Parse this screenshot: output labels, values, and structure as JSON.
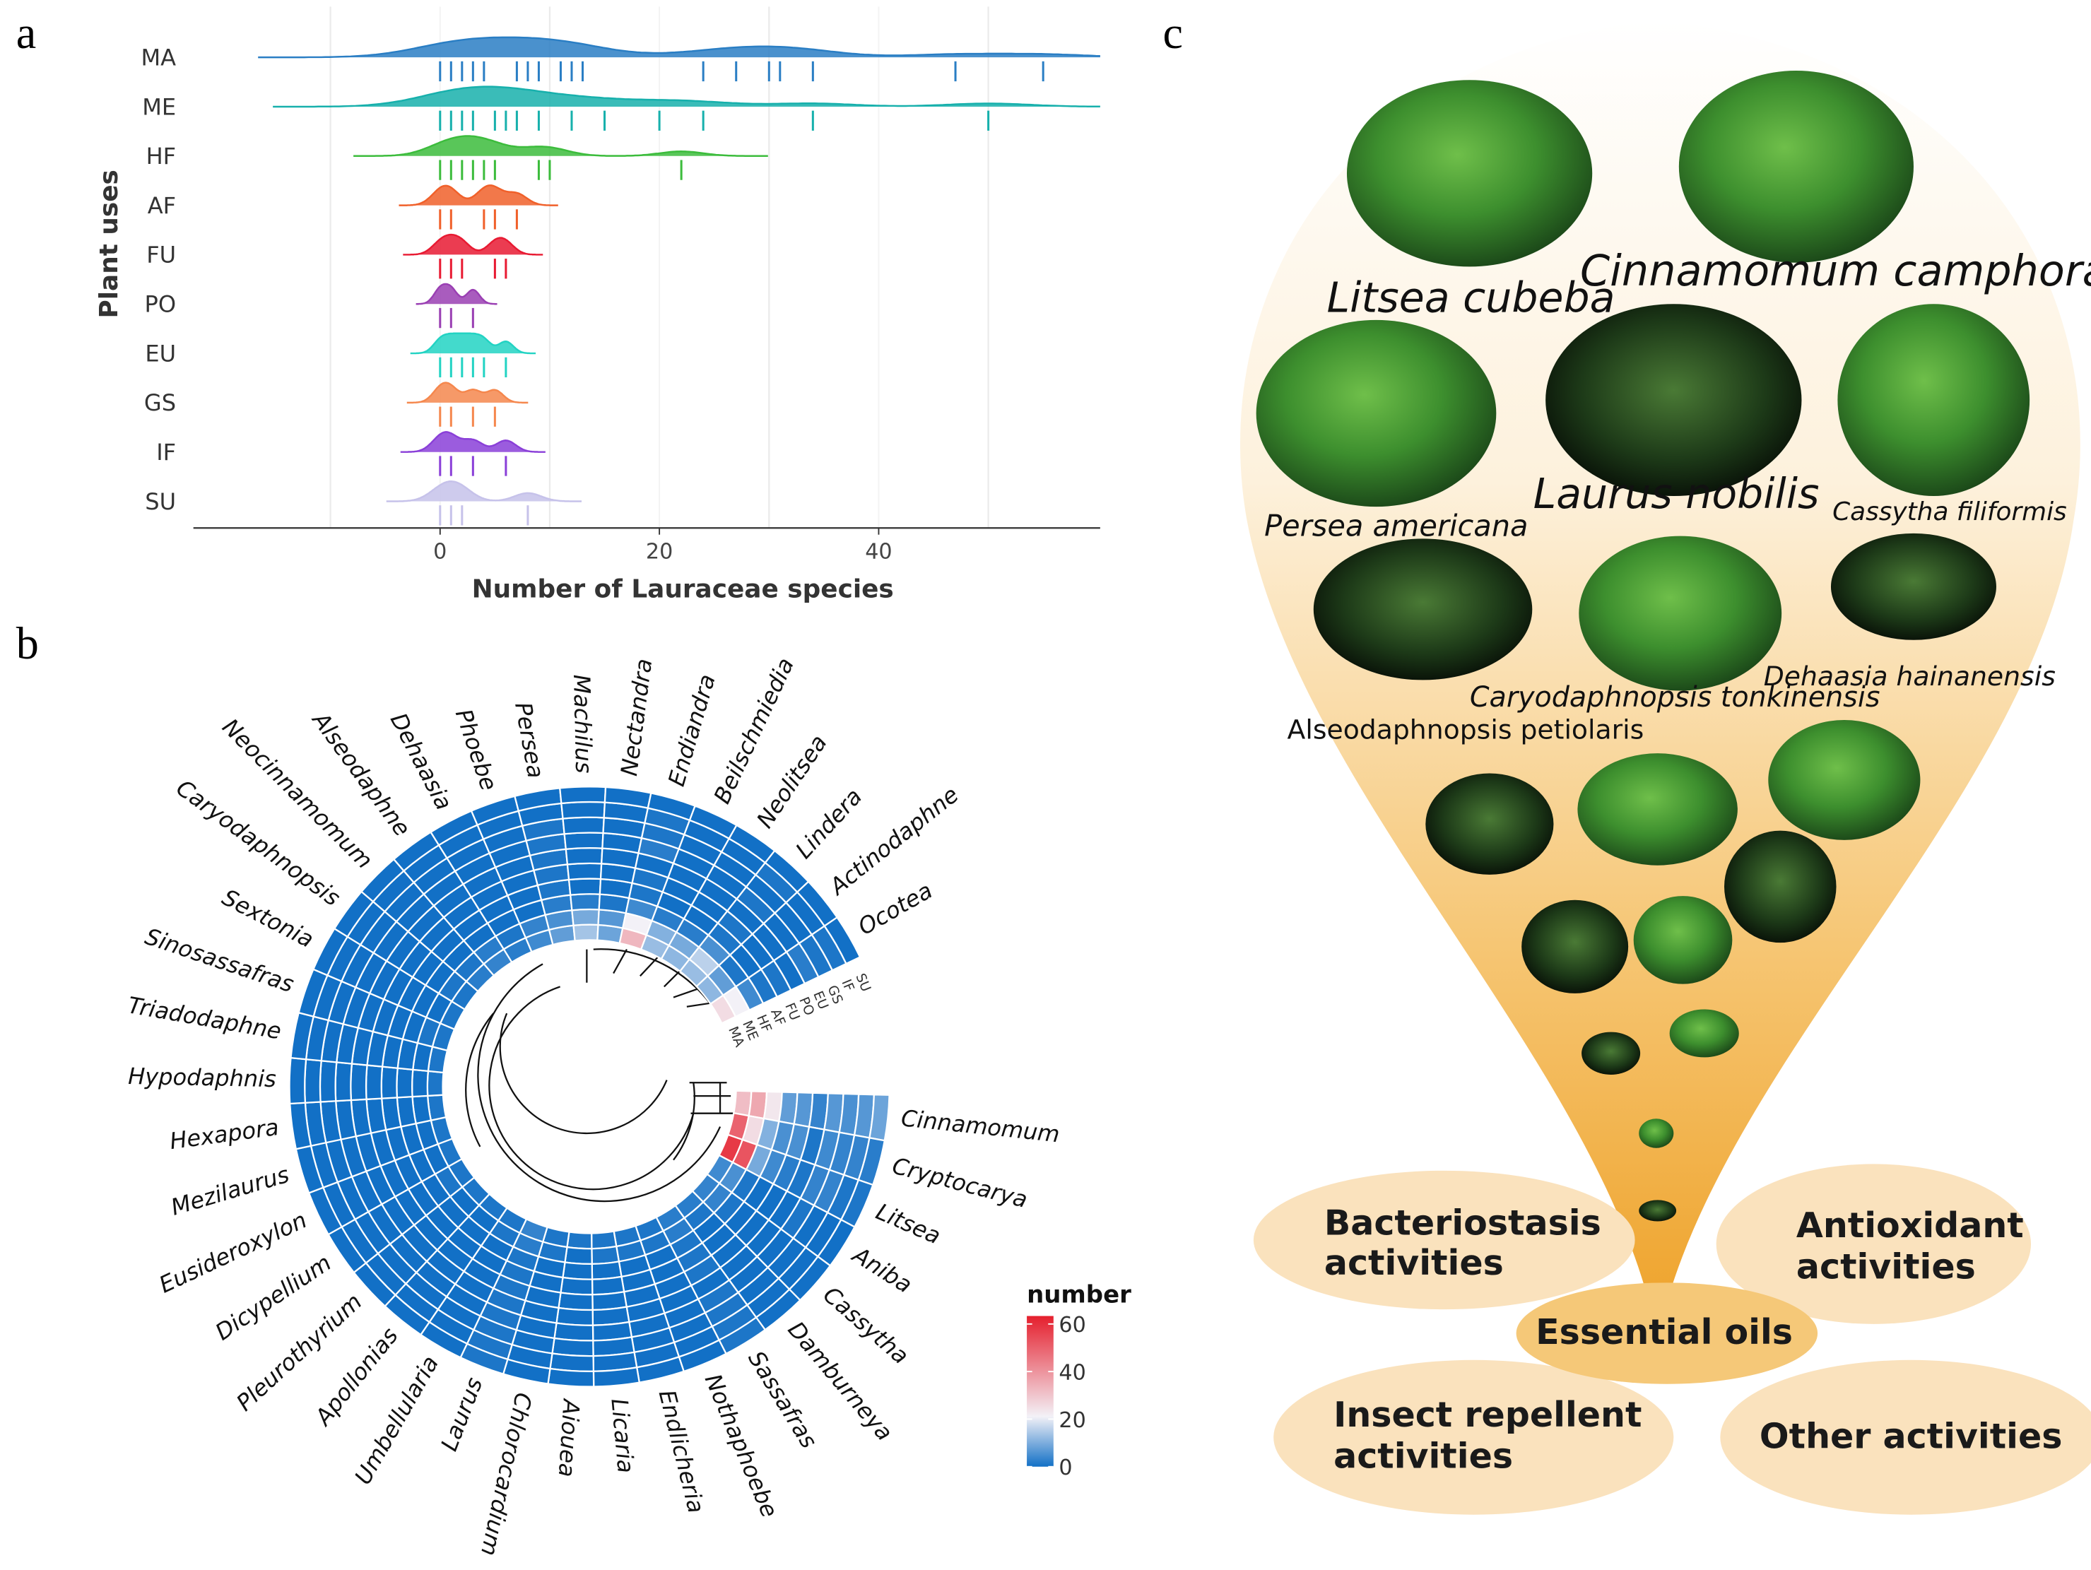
{
  "panel_labels": [
    "a",
    "b",
    "c"
  ],
  "chart_data": [
    {
      "type": "ridgeline",
      "xlabel": "Number of Lauraceae species",
      "ylabel": "Plant uses",
      "xlim": [
        -22.5,
        60.2
      ],
      "xticks": [
        0,
        20,
        40
      ],
      "xminor": [
        -10,
        10,
        30,
        50
      ],
      "grid": true,
      "series": [
        {
          "name": "MA",
          "color": "#2a7ec4",
          "values": [
            0,
            1,
            2,
            3,
            4,
            7,
            8,
            9,
            11,
            12,
            13,
            24,
            27,
            30,
            31,
            34,
            47,
            55
          ]
        },
        {
          "name": "ME",
          "color": "#17b0ac",
          "values": [
            0,
            1,
            2,
            3,
            5,
            6,
            7,
            9,
            12,
            15,
            20,
            24,
            34,
            50
          ]
        },
        {
          "name": "HF",
          "color": "#3cbc3c",
          "values": [
            0,
            1,
            2,
            3,
            4,
            5,
            9,
            10,
            22
          ]
        },
        {
          "name": "AF",
          "color": "#f0602a",
          "values": [
            0,
            1,
            4,
            5,
            7
          ]
        },
        {
          "name": "FU",
          "color": "#e81a32",
          "values": [
            0,
            1,
            2,
            5,
            6
          ]
        },
        {
          "name": "PO",
          "color": "#9a3fb3",
          "values": [
            0,
            1,
            3
          ]
        },
        {
          "name": "EU",
          "color": "#22d3c3",
          "values": [
            0,
            1,
            2,
            3,
            4,
            6
          ]
        },
        {
          "name": "GS",
          "color": "#f5874d",
          "values": [
            0,
            1,
            3,
            5
          ]
        },
        {
          "name": "IF",
          "color": "#8a3fd8",
          "values": [
            0,
            1,
            3,
            6
          ]
        },
        {
          "name": "SU",
          "color": "#c6c2ea",
          "values": [
            0,
            1,
            2,
            8
          ]
        }
      ]
    },
    {
      "type": "circular_heatmap",
      "rows": [
        "Cinnamomum",
        "Cryptocarya",
        "Litsea",
        "Aniba",
        "Cassytha",
        "Damburneya",
        "Sassafras",
        "Nothaphoebe",
        "Endlicheria",
        "Licaria",
        "Aiouea",
        "Chlorocardium",
        "Laurus",
        "Umbellularia",
        "Apollonias",
        "Pleurothyrium",
        "Dicypellium",
        "Eusideroxylon",
        "Mezilaurus",
        "Hexapora",
        "Hypodaphnis",
        "Triadodaphne",
        "Sinosassafras",
        "Sextonia",
        "Caryodaphnopsis",
        "Neocinnamomum",
        "Alseodaphne",
        "Dehaasia",
        "Phoebe",
        "Persea",
        "Machilus",
        "Nectandra",
        "Endiandra",
        "Beilschmiedia",
        "Neolitsea",
        "Lindera",
        "Actinodaphne",
        "Ocotea"
      ],
      "columns": [
        "MA",
        "ME",
        "HF",
        "AF",
        "FU",
        "PO",
        "EU",
        "GS",
        "IF",
        "SU"
      ],
      "values": [
        [
          30,
          34,
          22,
          7,
          6,
          3,
          6,
          5,
          6,
          8
        ],
        [
          47,
          24,
          10,
          5,
          5,
          1,
          4,
          3,
          3,
          2
        ],
        [
          55,
          50,
          9,
          4,
          2,
          1,
          3,
          3,
          1,
          1
        ],
        [
          4,
          5,
          1,
          0,
          0,
          0,
          1,
          0,
          0,
          0
        ],
        [
          3,
          3,
          1,
          0,
          0,
          0,
          0,
          0,
          0,
          0
        ],
        [
          2,
          1,
          0,
          0,
          0,
          0,
          0,
          0,
          0,
          0
        ],
        [
          2,
          2,
          1,
          1,
          1,
          0,
          1,
          1,
          1,
          1
        ],
        [
          1,
          1,
          0,
          0,
          0,
          0,
          0,
          0,
          0,
          0
        ],
        [
          1,
          1,
          0,
          0,
          0,
          0,
          0,
          0,
          0,
          0
        ],
        [
          1,
          1,
          0,
          0,
          0,
          0,
          0,
          0,
          0,
          0
        ],
        [
          1,
          0,
          0,
          0,
          0,
          0,
          0,
          0,
          0,
          0
        ],
        [
          1,
          1,
          0,
          0,
          0,
          0,
          0,
          0,
          0,
          0
        ],
        [
          3,
          2,
          1,
          1,
          1,
          1,
          1,
          1,
          1,
          1
        ],
        [
          1,
          1,
          0,
          0,
          0,
          0,
          0,
          0,
          0,
          0
        ],
        [
          1,
          0,
          0,
          0,
          0,
          0,
          0,
          0,
          0,
          0
        ],
        [
          1,
          0,
          0,
          0,
          0,
          0,
          0,
          0,
          0,
          0
        ],
        [
          1,
          1,
          0,
          0,
          0,
          0,
          0,
          0,
          0,
          0
        ],
        [
          1,
          0,
          0,
          0,
          0,
          0,
          0,
          0,
          0,
          0
        ],
        [
          1,
          0,
          0,
          0,
          0,
          0,
          0,
          0,
          0,
          0
        ],
        [
          1,
          0,
          0,
          0,
          0,
          0,
          0,
          0,
          0,
          0
        ],
        [
          1,
          0,
          0,
          0,
          0,
          0,
          0,
          0,
          0,
          0
        ],
        [
          1,
          0,
          0,
          0,
          0,
          0,
          0,
          0,
          0,
          0
        ],
        [
          1,
          1,
          0,
          0,
          0,
          0,
          0,
          0,
          0,
          0
        ],
        [
          1,
          0,
          0,
          0,
          0,
          0,
          0,
          0,
          0,
          0
        ],
        [
          1,
          1,
          0,
          0,
          0,
          0,
          0,
          0,
          0,
          0
        ],
        [
          2,
          1,
          0,
          0,
          0,
          0,
          0,
          0,
          0,
          0
        ],
        [
          3,
          2,
          0,
          0,
          0,
          0,
          0,
          0,
          0,
          0
        ],
        [
          2,
          1,
          0,
          0,
          0,
          0,
          0,
          0,
          0,
          0
        ],
        [
          4,
          3,
          0,
          0,
          0,
          0,
          0,
          0,
          0,
          0
        ],
        [
          7,
          5,
          2,
          1,
          1,
          1,
          1,
          1,
          0,
          0
        ],
        [
          13,
          9,
          2,
          0,
          0,
          0,
          0,
          0,
          0,
          0
        ],
        [
          8,
          6,
          1,
          0,
          0,
          0,
          0,
          0,
          0,
          0
        ],
        [
          31,
          20,
          4,
          1,
          1,
          0,
          2,
          1,
          1,
          0
        ],
        [
          12,
          10,
          2,
          0,
          0,
          0,
          0,
          0,
          0,
          0
        ],
        [
          11,
          9,
          2,
          0,
          0,
          0,
          0,
          0,
          0,
          0
        ],
        [
          12,
          15,
          5,
          1,
          1,
          0,
          1,
          0,
          1,
          0
        ],
        [
          11,
          7,
          1,
          0,
          0,
          0,
          0,
          0,
          0,
          0
        ],
        [
          24,
          20,
          4,
          1,
          1,
          0,
          2,
          1,
          1,
          0
        ]
      ],
      "colorbar": {
        "title": "number",
        "lim": [
          0,
          60
        ],
        "ticks": [
          0,
          20,
          40,
          60
        ],
        "colors": [
          {
            "value": 0,
            "color": "#1270c6"
          },
          {
            "value": 20,
            "color": "#f3f1f7"
          },
          {
            "value": 60,
            "color": "#e51f2d"
          }
        ]
      }
    }
  ],
  "infographic": {
    "species": [
      "Litsea cubeba",
      "Cinnamomum camphora",
      "Persea americana",
      "Laurus nobilis",
      "Cassytha filiformis",
      "Dehaasia hainanensis",
      "Caryodaphnopsis tonkinensis",
      "Alseodaphnopsis petiolaris"
    ],
    "center": "Essential oils",
    "activities": [
      [
        "Bacteriostasis",
        "activities"
      ],
      [
        "Antioxidant",
        "activities"
      ],
      [
        "Insect repellent",
        "activities"
      ],
      [
        "Other activities"
      ]
    ]
  }
}
